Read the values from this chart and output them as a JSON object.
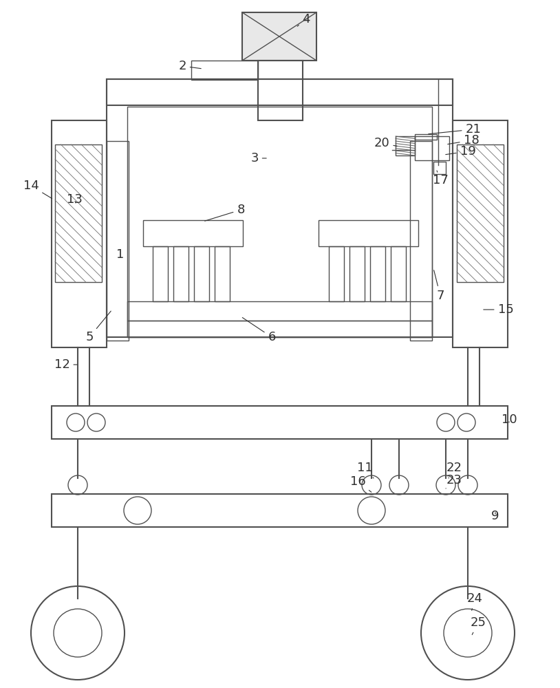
{
  "bg_color": "#ffffff",
  "lc": "#505050",
  "lw": 1.0,
  "lw2": 1.5,
  "fig_w": 8.14,
  "fig_h": 10.0
}
